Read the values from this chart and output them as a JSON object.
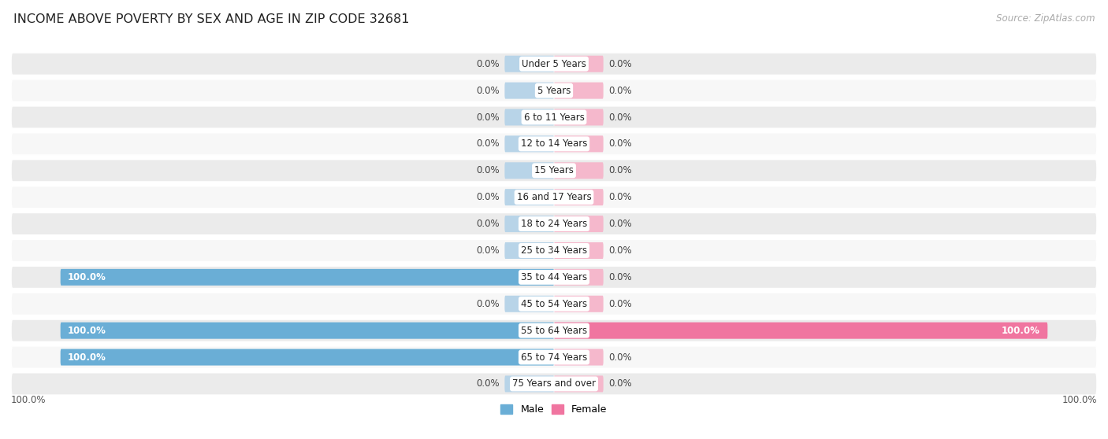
{
  "title": "INCOME ABOVE POVERTY BY SEX AND AGE IN ZIP CODE 32681",
  "source": "Source: ZipAtlas.com",
  "categories": [
    "Under 5 Years",
    "5 Years",
    "6 to 11 Years",
    "12 to 14 Years",
    "15 Years",
    "16 and 17 Years",
    "18 to 24 Years",
    "25 to 34 Years",
    "35 to 44 Years",
    "45 to 54 Years",
    "55 to 64 Years",
    "65 to 74 Years",
    "75 Years and over"
  ],
  "male_values": [
    0.0,
    0.0,
    0.0,
    0.0,
    0.0,
    0.0,
    0.0,
    0.0,
    100.0,
    0.0,
    100.0,
    100.0,
    0.0
  ],
  "female_values": [
    0.0,
    0.0,
    0.0,
    0.0,
    0.0,
    0.0,
    0.0,
    0.0,
    0.0,
    0.0,
    100.0,
    0.0,
    0.0
  ],
  "male_bar_color": "#6aaed6",
  "female_bar_color": "#f075a0",
  "male_stub_color": "#b8d4e8",
  "female_stub_color": "#f5b8cc",
  "row_color_odd": "#ebebeb",
  "row_color_even": "#f7f7f7",
  "bg_white": "#ffffff",
  "title_fontsize": 11.5,
  "cat_fontsize": 8.5,
  "val_fontsize": 8.5,
  "source_fontsize": 8.5,
  "axis_label_fontsize": 8.5,
  "legend_fontsize": 9,
  "stub_size": 10.0,
  "max_val": 100.0,
  "xlim": 110
}
